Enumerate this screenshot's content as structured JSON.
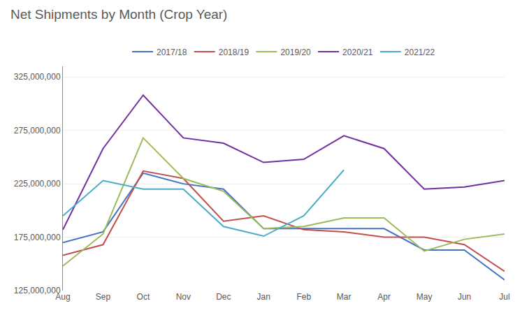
{
  "chart_data": {
    "type": "line",
    "title": "Net Shipments by Month (Crop Year)",
    "categories": [
      "Aug",
      "Sep",
      "Oct",
      "Nov",
      "Dec",
      "Jan",
      "Feb",
      "Mar",
      "Apr",
      "May",
      "Jun",
      "Jul"
    ],
    "series": [
      {
        "name": "2017/18",
        "color": "#4472c4",
        "values": [
          170000000,
          180000000,
          235000000,
          225000000,
          220000000,
          183000000,
          183000000,
          183000000,
          183000000,
          163000000,
          163000000,
          135000000
        ]
      },
      {
        "name": "2018/19",
        "color": "#c0504d",
        "values": [
          158000000,
          168000000,
          237000000,
          230000000,
          190000000,
          195000000,
          182000000,
          180000000,
          175000000,
          175000000,
          168000000,
          143000000
        ]
      },
      {
        "name": "2019/20",
        "color": "#9bbb59",
        "values": [
          148000000,
          178000000,
          268000000,
          230000000,
          218000000,
          183000000,
          185000000,
          193000000,
          193000000,
          162000000,
          173000000,
          178000000
        ]
      },
      {
        "name": "2020/21",
        "color": "#7030a0",
        "values": [
          182000000,
          258000000,
          308000000,
          268000000,
          263000000,
          245000000,
          248000000,
          270000000,
          258000000,
          220000000,
          222000000,
          228000000
        ]
      },
      {
        "name": "2021/22",
        "color": "#4bacc6",
        "values": [
          195000000,
          228000000,
          220000000,
          220000000,
          185000000,
          176000000,
          195000000,
          238000000,
          null,
          null,
          null,
          null
        ]
      }
    ],
    "ylim": [
      125000000,
      335000000
    ],
    "yticks": [
      {
        "value": 125000000,
        "label": "125,000,000"
      },
      {
        "value": 175000000,
        "label": "175,000,000"
      },
      {
        "value": 225000000,
        "label": "225,000,000"
      },
      {
        "value": 275000000,
        "label": "275,000,000"
      },
      {
        "value": 325000000,
        "label": "325,000,000"
      }
    ],
    "grid": true,
    "legend": "top"
  }
}
